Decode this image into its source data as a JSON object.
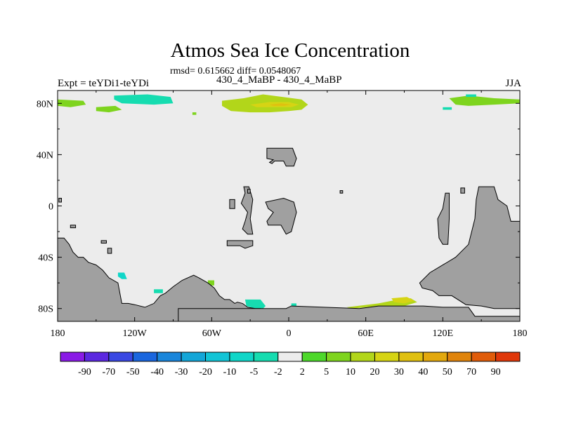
{
  "title": "Atmos Sea Ice Concentration",
  "stats": "rmsd= 0.615662 diff= 0.0548067",
  "experiment": "Expt = teYDi1-teYDi",
  "period": "430_4_MaBP - 430_4_MaBP",
  "season": "JJA",
  "colors": {
    "land": "#a0a0a0",
    "ocean": "#ececec",
    "frame": "#000000"
  },
  "chart_data": {
    "type": "heatmap",
    "projection": "cylindrical-equidistant",
    "x": {
      "range": [
        -180,
        180
      ],
      "ticks": [
        -180,
        -120,
        -60,
        0,
        60,
        120,
        180
      ],
      "tick_labels": [
        "180",
        "120W",
        "60W",
        "0",
        "60E",
        "120E",
        "180"
      ]
    },
    "y": {
      "range": [
        -90,
        90
      ],
      "ticks": [
        -80,
        -40,
        0,
        40,
        80
      ],
      "tick_labels": [
        "80S",
        "40S",
        "0",
        "40N",
        "80N"
      ]
    },
    "colorbar": {
      "labels": [
        "-90",
        "-70",
        "-50",
        "-40",
        "-30",
        "-20",
        "-10",
        "-5",
        "-2",
        "2",
        "5",
        "10",
        "20",
        "30",
        "40",
        "50",
        "70",
        "90"
      ],
      "colors": [
        "#8a1be6",
        "#5b28e0",
        "#3a48e3",
        "#1a66de",
        "#1a86db",
        "#14a6d8",
        "#12c4d6",
        "#10d6c8",
        "#16dcb0",
        "#ececec",
        "#4dd82a",
        "#7ed41e",
        "#b2d61a",
        "#d6d414",
        "#e0c010",
        "#e3a80d",
        "#e0840c",
        "#e05c0a",
        "#e0380a"
      ]
    },
    "regions": [
      {
        "kind": "land",
        "name": "north-landmass",
        "lon": [
          -17,
          3,
          6,
          4,
          -2,
          -4,
          -11,
          -13,
          -15,
          -12,
          -17,
          -17
        ],
        "lat": [
          45,
          45,
          37,
          31,
          31,
          35,
          35,
          33,
          34,
          36,
          37,
          45
        ]
      },
      {
        "kind": "land",
        "name": "equatorial-blob-a",
        "lon": [
          -35,
          -31,
          -28,
          -30,
          -28,
          -32,
          -36,
          -34,
          -32,
          -37,
          -34,
          -35
        ],
        "lat": [
          15,
          15,
          5,
          -10,
          -22,
          -22,
          -18,
          -12,
          -5,
          2,
          10,
          15
        ]
      },
      {
        "kind": "land",
        "name": "equatorial-blob-b",
        "lon": [
          -18,
          -4,
          4,
          6,
          2,
          -2,
          -6,
          -16,
          -17,
          -12,
          -16,
          -18
        ],
        "lat": [
          3,
          6,
          3,
          -5,
          -20,
          -22,
          -15,
          -15,
          -12,
          -5,
          -2,
          3
        ]
      },
      {
        "kind": "land",
        "name": "small-island-a",
        "lon": [
          -46,
          -42,
          -42,
          -46,
          -46
        ],
        "lat": [
          5,
          5,
          -2,
          -2,
          5
        ]
      },
      {
        "kind": "land",
        "name": "small-island-b",
        "lon": [
          -32,
          -30,
          -30,
          -32,
          -32
        ],
        "lat": [
          13,
          13,
          10,
          10,
          13
        ]
      },
      {
        "kind": "land",
        "name": "small-island-c",
        "lon": [
          -48,
          -28,
          -28,
          -34,
          -38,
          -48,
          -48
        ],
        "lat": [
          -27,
          -27,
          -31,
          -33,
          -31,
          -31,
          -27
        ]
      },
      {
        "kind": "land",
        "name": "small-island-d",
        "lon": [
          -146,
          -142,
          -142,
          -146,
          -146
        ],
        "lat": [
          -27,
          -27,
          -29,
          -29,
          -27
        ]
      },
      {
        "kind": "land",
        "name": "small-island-e",
        "lon": [
          -170,
          -166,
          -166,
          -170,
          -170
        ],
        "lat": [
          -15,
          -15,
          -17,
          -17,
          -15
        ]
      },
      {
        "kind": "land",
        "name": "small-island-f",
        "lon": [
          -141,
          -138,
          -138,
          -141,
          -141
        ],
        "lat": [
          -33,
          -33,
          -37,
          -37,
          -33
        ]
      },
      {
        "kind": "land",
        "name": "tiny-island-g",
        "lon": [
          40,
          42,
          42,
          40,
          40
        ],
        "lat": [
          12,
          12,
          10,
          10,
          12
        ]
      },
      {
        "kind": "land",
        "name": "tiny-island-h",
        "lon": [
          134,
          137,
          137,
          134,
          134
        ],
        "lat": [
          14,
          14,
          10,
          10,
          14
        ]
      },
      {
        "kind": "land",
        "name": "tiny-island-i",
        "lon": [
          -179,
          -177,
          -177,
          -179,
          -179
        ],
        "lat": [
          6,
          6,
          3,
          3,
          6
        ]
      },
      {
        "kind": "land",
        "name": "east-island-chain",
        "lon": [
          122,
          125,
          125,
          124,
          120,
          117,
          116,
          120,
          122
        ],
        "lat": [
          10,
          10,
          -10,
          -30,
          -30,
          -25,
          -10,
          -2,
          10
        ]
      },
      {
        "kind": "land",
        "name": "east-continent",
        "lon": [
          148,
          160,
          163,
          170,
          173,
          180,
          180,
          160,
          150,
          138,
          127,
          117,
          112,
          104,
          102,
          110,
          120,
          130,
          140,
          145,
          146,
          148
        ],
        "lat": [
          15,
          15,
          5,
          0,
          -12,
          -12,
          -80,
          -80,
          -78,
          -77,
          -70,
          -70,
          -66,
          -64,
          -60,
          -52,
          -46,
          -40,
          -30,
          -10,
          5,
          15
        ]
      },
      {
        "kind": "land",
        "name": "west-continent",
        "lon": [
          -180,
          -175,
          -171,
          -168,
          -164,
          -160,
          -156,
          -150,
          -145,
          -140,
          -133,
          -130,
          -125,
          -120,
          -112,
          -105,
          -100,
          -96,
          -90,
          -83,
          -74,
          -70,
          -63,
          -58,
          -54,
          -50,
          -46,
          -42,
          -40,
          -36,
          -32,
          -26,
          -22,
          -20,
          -180,
          -180
        ],
        "lat": [
          -25,
          -25,
          -30,
          -36,
          -40,
          -40,
          -44,
          -46,
          -50,
          -56,
          -60,
          -76,
          -76,
          -77,
          -79,
          -76,
          -70,
          -68,
          -63,
          -58,
          -54,
          -56,
          -60,
          -64,
          -70,
          -73,
          -73,
          -76,
          -75,
          -76,
          -79,
          -80,
          -80,
          -90,
          -90,
          -25
        ]
      },
      {
        "kind": "land",
        "name": "south-strip",
        "lon": [
          -86,
          -2,
          2,
          55,
          70,
          78,
          105,
          120,
          140,
          145,
          180,
          180,
          -86,
          -86
        ],
        "lat": [
          -80,
          -80,
          -78,
          -80,
          -78,
          -78,
          -78,
          -79,
          -79,
          -86,
          -86,
          -90,
          -90,
          -80
        ]
      },
      {
        "kind": "ice",
        "bin": 10,
        "name": "arctic-central",
        "lon": [
          -52,
          -35,
          -20,
          -5,
          10,
          15,
          10,
          0,
          -15,
          -30,
          -45,
          -52,
          -52
        ],
        "lat": [
          82,
          84,
          87,
          85,
          83,
          79,
          75,
          74,
          73,
          73,
          74,
          78,
          82
        ]
      },
      {
        "kind": "ice",
        "bin": 20,
        "name": "arctic-core",
        "lon": [
          -30,
          -15,
          0,
          8,
          2,
          -10,
          -25,
          -30
        ],
        "lat": [
          79,
          81,
          81,
          79,
          77,
          77,
          77,
          79
        ]
      },
      {
        "kind": "ice",
        "bin": 30,
        "name": "arctic-peak",
        "lon": [
          -15,
          -6,
          2,
          -4,
          -12,
          -15
        ],
        "lat": [
          79,
          80,
          79,
          78,
          78,
          79
        ]
      },
      {
        "kind": "ice",
        "bin": 5,
        "name": "arctic-west",
        "lon": [
          -180,
          -160,
          -158,
          -170,
          -180,
          -180
        ],
        "lat": [
          83,
          82,
          79,
          77,
          78,
          83
        ]
      },
      {
        "kind": "ice",
        "bin": 5,
        "name": "arctic-east-a",
        "lon": [
          125,
          140,
          160,
          180,
          180,
          160,
          140,
          130,
          125
        ],
        "lat": [
          84,
          86,
          84,
          83,
          80,
          79,
          78,
          79,
          84
        ]
      },
      {
        "kind": "ice",
        "bin": 5,
        "name": "arctic-east-b",
        "lon": [
          -150,
          -135,
          -130,
          -140,
          -150,
          -150
        ],
        "lat": [
          77,
          78,
          75,
          73,
          74,
          77
        ]
      },
      {
        "kind": "ice",
        "bin": -5,
        "name": "arctic-neg-a",
        "lon": [
          -136,
          -110,
          -92,
          -90,
          -105,
          -130,
          -136,
          -136
        ],
        "lat": [
          86,
          87,
          85,
          80,
          79,
          80,
          83,
          86
        ]
      },
      {
        "kind": "ice",
        "bin": -5,
        "name": "arctic-neg-b",
        "lon": [
          120,
          127,
          127,
          120,
          120
        ],
        "lat": [
          77,
          77,
          75,
          75,
          77
        ]
      },
      {
        "kind": "ice",
        "bin": -5,
        "name": "arctic-neg-c",
        "lon": [
          138,
          146,
          146,
          138,
          138
        ],
        "lat": [
          87,
          87,
          85,
          85,
          87
        ]
      },
      {
        "kind": "ice",
        "bin": 5,
        "name": "arctic-dot",
        "lon": [
          -75,
          -72,
          -72,
          -75,
          -75
        ],
        "lat": [
          73,
          73,
          71,
          71,
          73
        ]
      },
      {
        "kind": "ice",
        "bin": -10,
        "name": "south-neg-a",
        "lon": [
          -133,
          -128,
          -126,
          -130,
          -133,
          -133
        ],
        "lat": [
          -52,
          -52,
          -57,
          -57,
          -55,
          -52
        ]
      },
      {
        "kind": "ice",
        "bin": -5,
        "name": "south-neg-b",
        "lon": [
          -34,
          -22,
          -18,
          -20,
          -26,
          -33,
          -34
        ],
        "lat": [
          -73,
          -73,
          -78,
          -80,
          -80,
          -78,
          -73
        ]
      },
      {
        "kind": "ice",
        "bin": -5,
        "name": "south-neg-c",
        "lon": [
          -105,
          -98,
          -98,
          -105,
          -105
        ],
        "lat": [
          -65,
          -65,
          -68,
          -68,
          -65
        ]
      },
      {
        "kind": "ice",
        "bin": 5,
        "name": "south-pos-a",
        "lon": [
          -63,
          -58,
          -58,
          -63,
          -63
        ],
        "lat": [
          -58,
          -58,
          -62,
          -62,
          -58
        ]
      },
      {
        "kind": "ice",
        "bin": 10,
        "name": "south-pos-b",
        "lon": [
          45,
          70,
          80,
          95,
          100,
          90,
          70,
          50,
          45
        ],
        "lat": [
          -79,
          -76,
          -74,
          -72,
          -75,
          -78,
          -78,
          -80,
          -79
        ]
      },
      {
        "kind": "ice",
        "bin": 20,
        "name": "south-pos-c",
        "lon": [
          80,
          92,
          98,
          90,
          82,
          80
        ],
        "lat": [
          -72,
          -71,
          -74,
          -76,
          -75,
          -72
        ]
      },
      {
        "kind": "ice",
        "bin": -5,
        "name": "south-neg-d",
        "lon": [
          2,
          6,
          6,
          2,
          2
        ],
        "lat": [
          -76,
          -76,
          -78,
          -78,
          -76
        ]
      }
    ]
  }
}
